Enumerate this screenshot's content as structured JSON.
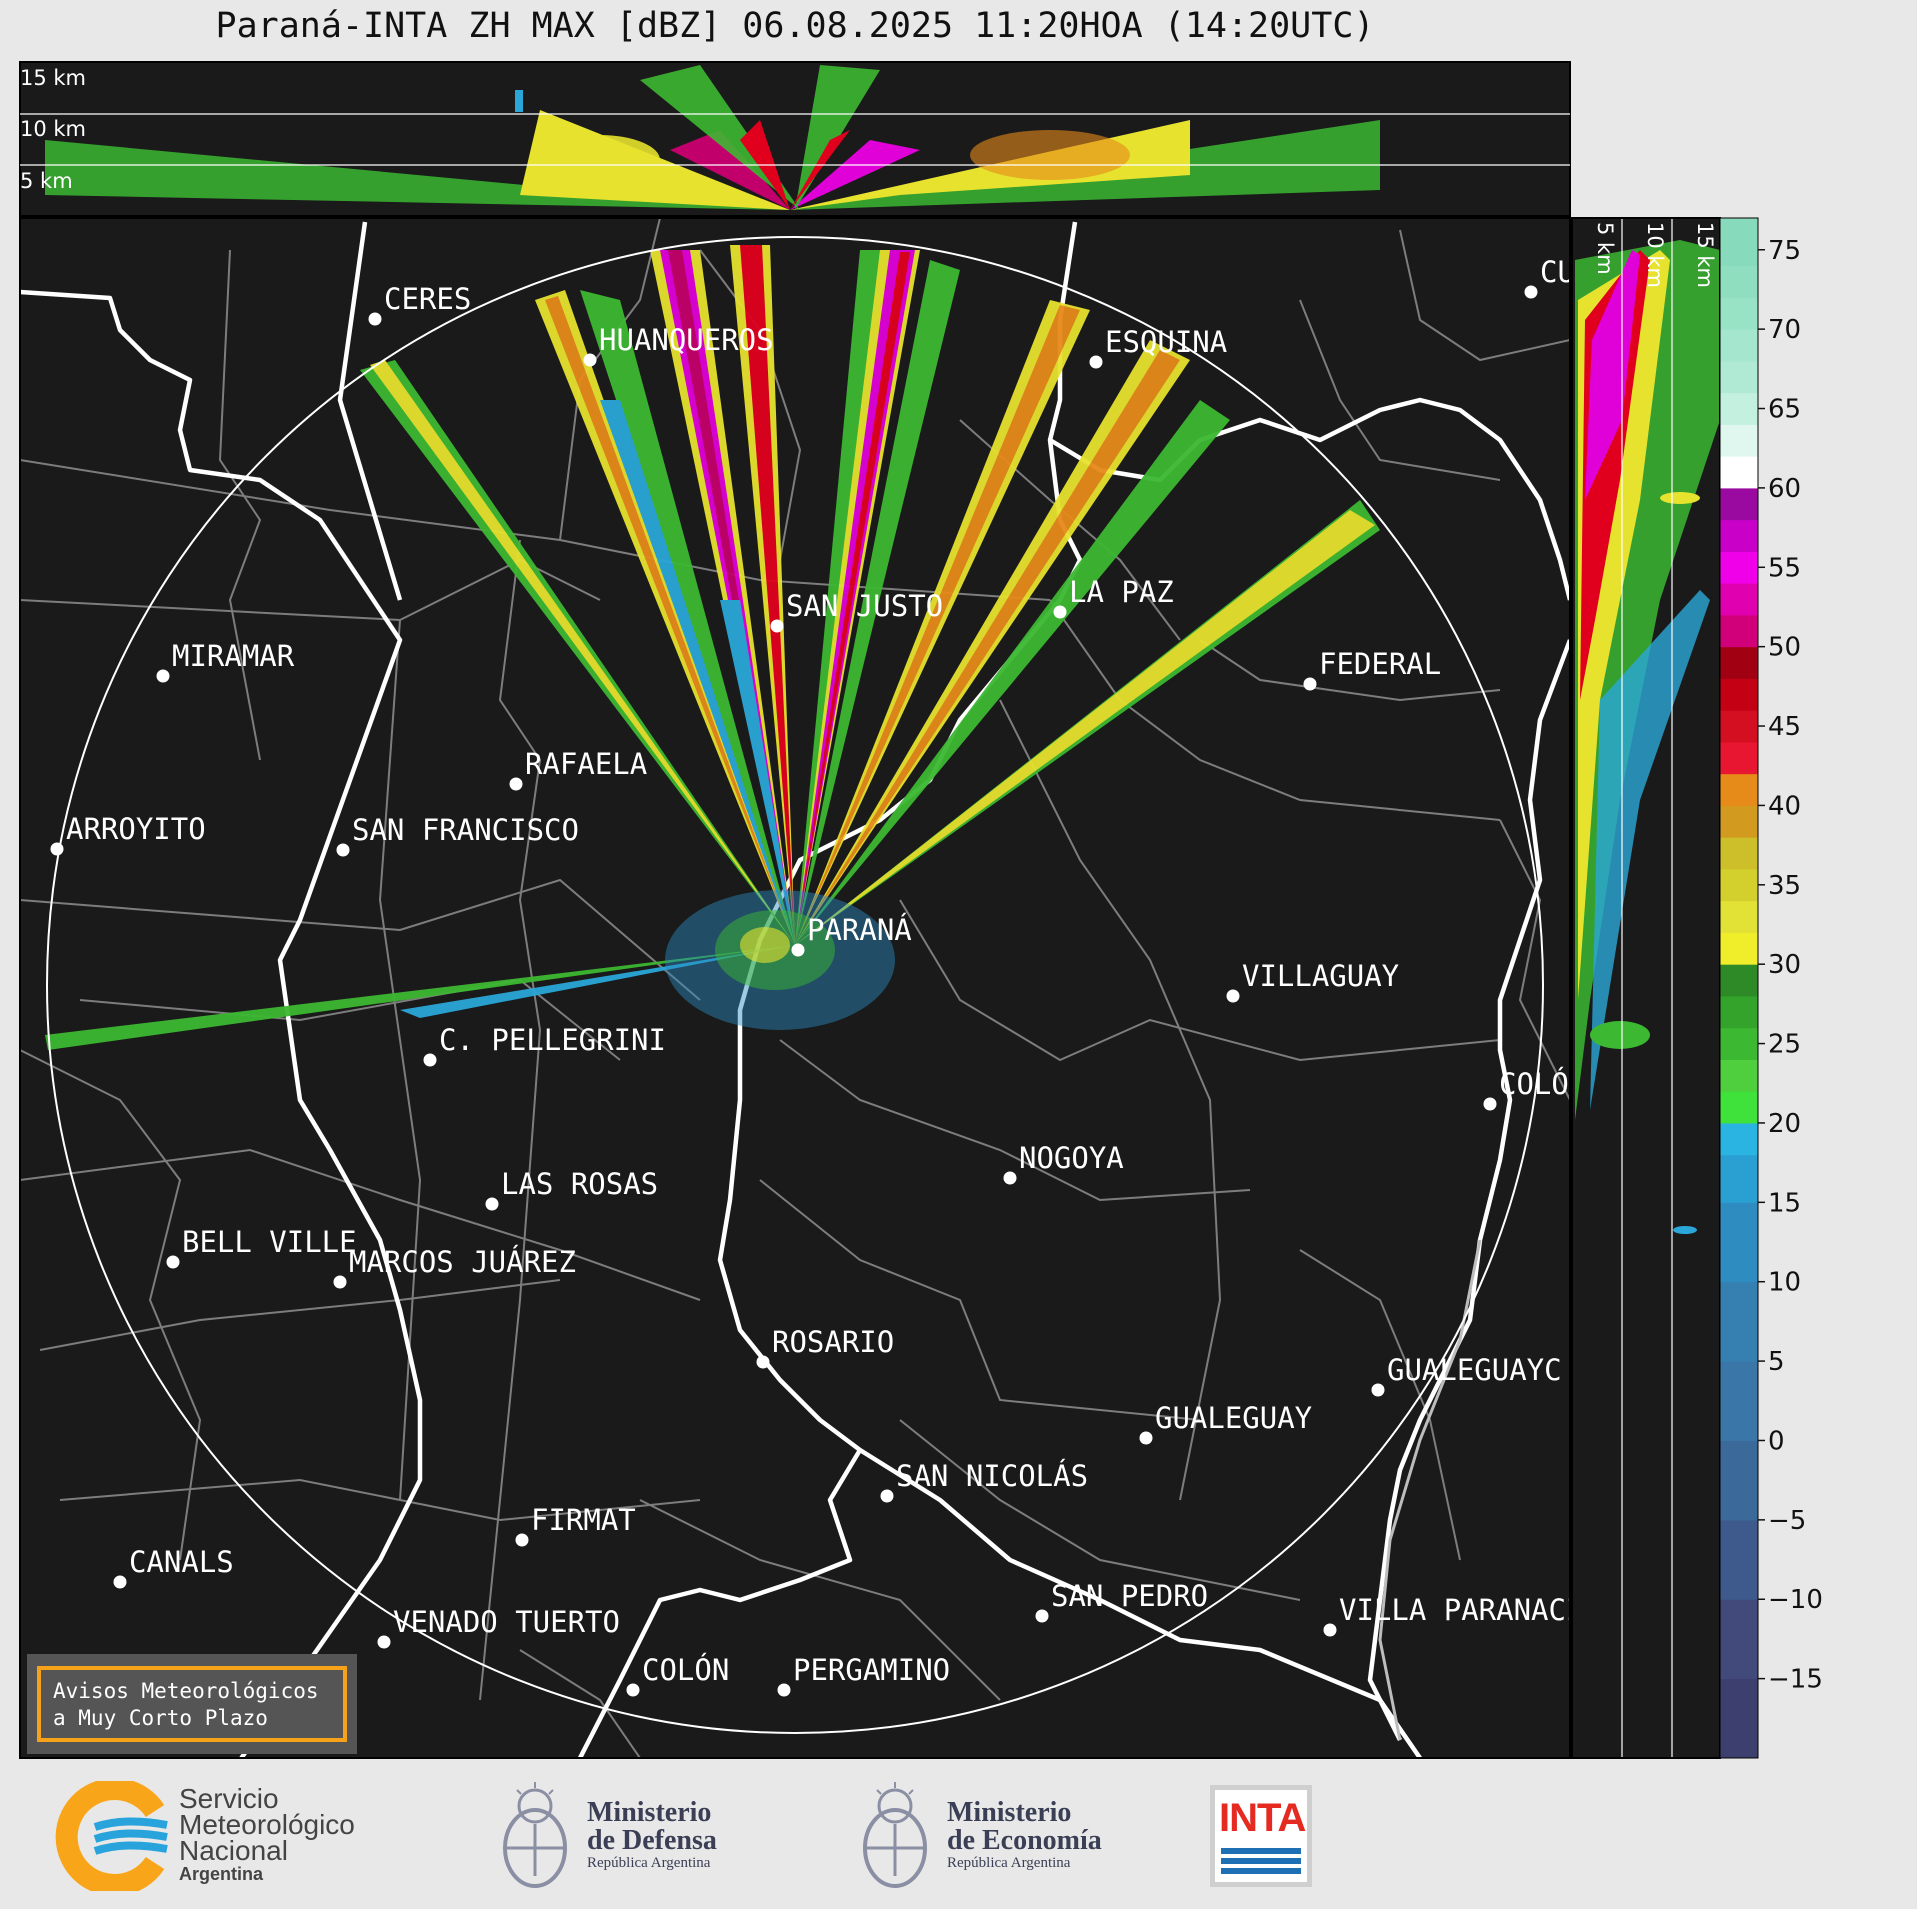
{
  "title": "Paraná-INTA ZH MAX [dBZ] 06.08.2025 11:20HOA (14:20UTC)",
  "top_panel_labels": [
    "15 km",
    "10 km",
    "5 km"
  ],
  "side_panel_labels": [
    "5 km",
    "10 km",
    "15 km"
  ],
  "colorbar": {
    "ticks": [
      "75",
      "70",
      "65",
      "60",
      "55",
      "50",
      "45",
      "40",
      "35",
      "30",
      "25",
      "20",
      "15",
      "10",
      "5",
      "0",
      "−5",
      "−10",
      "−15"
    ],
    "range": [
      -20,
      77
    ]
  },
  "colors": {
    "background": "#1a1a1a",
    "accent_notice_border": "#f7a21b"
  },
  "cities": [
    {
      "name": "CERES"
    },
    {
      "name": "HUANQUEROS"
    },
    {
      "name": "ESQUINA"
    },
    {
      "name": "CU"
    },
    {
      "name": "LA PAZ"
    },
    {
      "name": "SAN JUSTO"
    },
    {
      "name": "MIRAMAR"
    },
    {
      "name": "FEDERAL"
    },
    {
      "name": "RAFAELA"
    },
    {
      "name": "ARROYITO"
    },
    {
      "name": "SAN FRANCISCO"
    },
    {
      "name": "PARANÁ"
    },
    {
      "name": "VILLAGUAY"
    },
    {
      "name": "C. PELLEGRINI"
    },
    {
      "name": "COLÓ"
    },
    {
      "name": "NOGOYA"
    },
    {
      "name": "LAS ROSAS"
    },
    {
      "name": "BELL VILLE"
    },
    {
      "name": "MARCOS JUÁREZ"
    },
    {
      "name": "ROSARIO"
    },
    {
      "name": "GUALEGUAYC"
    },
    {
      "name": "GUALEGUAY"
    },
    {
      "name": "SAN NICOLÁS"
    },
    {
      "name": "FIRMAT"
    },
    {
      "name": "CANALS"
    },
    {
      "name": "SAN PEDRO"
    },
    {
      "name": "VILLA PARANACIT"
    },
    {
      "name": "VENADO TUERTO"
    },
    {
      "name": "COLÓN"
    },
    {
      "name": "PERGAMINO"
    }
  ],
  "notice": {
    "line1": "Avisos Meteorológicos",
    "line2": "a Muy Corto Plazo"
  },
  "logos": {
    "smn": {
      "line1": "Servicio",
      "line2": "Meteorológico",
      "line3": "Nacional",
      "sub": "Argentina"
    },
    "defensa": {
      "line1": "Ministerio",
      "line2": "de Defensa",
      "sub": "República Argentina"
    },
    "economia": {
      "line1": "Ministerio",
      "line2": "de Economía",
      "sub": "República Argentina"
    },
    "inta": {
      "word": "INTA"
    }
  }
}
